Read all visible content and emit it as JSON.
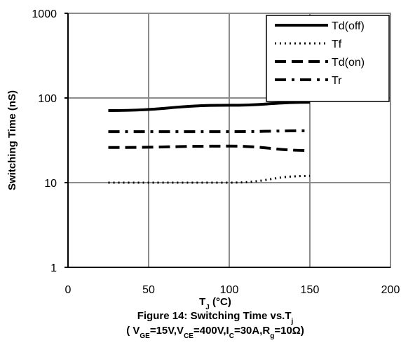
{
  "chart_data": {
    "type": "line",
    "xlabel": "T_J (°C)",
    "ylabel": "Switching Time (nS)",
    "title": "Figure 14: Switching Time vs.T_j",
    "subtitle": "( V_GE=15V,V_CE=400V,I_C=30A,R_g=10Ω)",
    "xlim": [
      0,
      200
    ],
    "ylim": [
      1,
      1000
    ],
    "yscale": "log",
    "grid": true,
    "legend_position": "top-right",
    "x_ticks": [
      0,
      50,
      100,
      150,
      200
    ],
    "x_tick_labels": [
      "0",
      "50",
      "100",
      "150",
      "200"
    ],
    "y_ticks": [
      1,
      10,
      100,
      1000
    ],
    "y_tick_labels": [
      "1",
      "10",
      "100",
      "1000"
    ],
    "x": [
      25,
      100,
      150
    ],
    "series": [
      {
        "name": "Td(off)",
        "values": [
          71,
          82,
          89
        ],
        "dash": "solid",
        "color": "#000000"
      },
      {
        "name": "Tf",
        "values": [
          10,
          10,
          12
        ],
        "dash": "dotted",
        "color": "#000000"
      },
      {
        "name": "Td(on)",
        "values": [
          26,
          27,
          24
        ],
        "dash": "dashed",
        "color": "#000000"
      },
      {
        "name": "Tr",
        "values": [
          40,
          40,
          41
        ],
        "dash": "dashdot",
        "color": "#000000"
      }
    ]
  }
}
